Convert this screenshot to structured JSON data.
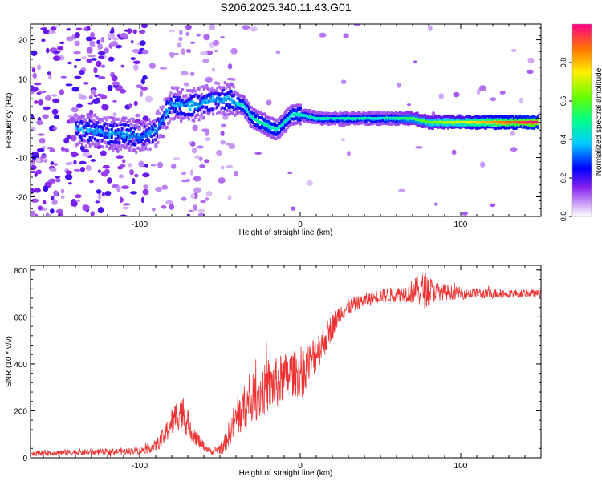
{
  "title": "S206.2025.340.11.43.G01",
  "chart_data": [
    {
      "type": "heatmap",
      "xlabel": "Height of straight line (km)",
      "ylabel": "Frequency (Hz)",
      "xlim": [
        -168,
        150
      ],
      "ylim": [
        -25,
        24
      ],
      "xticks": [
        -100,
        0,
        100
      ],
      "xtick_labels": [
        "-100",
        "0",
        "100"
      ],
      "yticks": [
        -20,
        -10,
        0,
        10,
        20
      ],
      "ytick_labels": [
        "-20",
        "-10",
        "0",
        "10",
        "20"
      ],
      "colorbar": {
        "label": "Normalized spectral amplitude",
        "range": [
          0,
          1
        ],
        "ticks": [
          0.0,
          0.2,
          0.4,
          0.6,
          0.8
        ],
        "tick_labels": [
          "0.0",
          "0.2",
          "0.4",
          "0.6",
          "0.8"
        ]
      },
      "ridge": {
        "x": [
          -130,
          -120,
          -110,
          -100,
          -90,
          -80,
          -70,
          -60,
          -52,
          -45,
          -40,
          -35,
          -30,
          -25,
          -20,
          -15,
          -10,
          -5,
          0,
          10,
          25,
          50,
          65,
          70,
          80,
          100,
          125,
          148
        ],
        "y": [
          -3,
          -4,
          -4,
          -5,
          -3,
          4,
          3,
          4,
          5,
          5,
          4,
          3,
          0,
          -1,
          -2,
          -3,
          -1,
          1,
          1,
          0,
          0,
          0,
          0,
          0,
          -1,
          -1,
          -1,
          -1
        ]
      }
    },
    {
      "type": "line",
      "xlabel": "Height of straight line (km)",
      "ylabel": "SNR (10 * v/v)",
      "xlim": [
        -168,
        150
      ],
      "ylim": [
        0,
        820
      ],
      "xticks": [
        -100,
        0,
        100
      ],
      "xtick_labels": [
        "-100",
        "0",
        "100"
      ],
      "yticks": [
        0,
        200,
        400,
        600,
        800
      ],
      "ytick_labels": [
        "0",
        "200",
        "400",
        "600",
        "800"
      ],
      "color": "#ee3333",
      "envelope": {
        "x": [
          -168,
          -120,
          -100,
          -90,
          -85,
          -80,
          -75,
          -72,
          -68,
          -62,
          -55,
          -48,
          -42,
          -35,
          -28,
          -20,
          -12,
          -5,
          0,
          8,
          15,
          25,
          35,
          50,
          65,
          72,
          78,
          85,
          100,
          125,
          150
        ],
        "y": [
          20,
          25,
          30,
          50,
          90,
          150,
          200,
          170,
          120,
          60,
          25,
          45,
          140,
          210,
          260,
          300,
          330,
          360,
          350,
          430,
          500,
          620,
          660,
          690,
          700,
          710,
          715,
          710,
          700,
          700,
          700
        ],
        "noise": [
          12,
          14,
          15,
          25,
          40,
          60,
          80,
          70,
          50,
          25,
          12,
          30,
          70,
          100,
          110,
          110,
          110,
          100,
          90,
          90,
          70,
          40,
          30,
          30,
          35,
          60,
          80,
          40,
          25,
          20,
          15
        ]
      }
    }
  ]
}
